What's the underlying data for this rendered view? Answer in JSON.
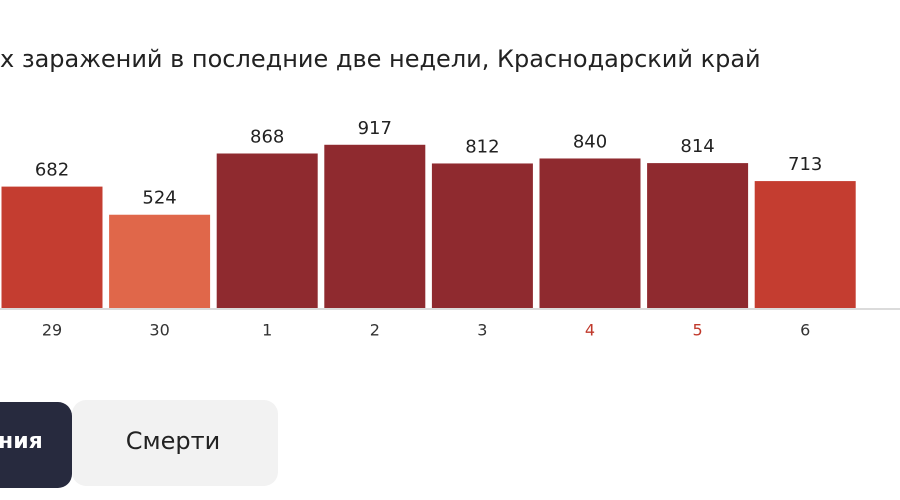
{
  "chart_data": {
    "type": "bar",
    "title": "х заражений в последние две недели, Краснодарский край",
    "categories": [
      "29",
      "30",
      "1",
      "2",
      "3",
      "4",
      "5",
      "6"
    ],
    "values": [
      682,
      524,
      868,
      917,
      812,
      840,
      814,
      713
    ],
    "colors": [
      "#c43d30",
      "#e0674a",
      "#8f2a2f",
      "#8f2a2f",
      "#8f2a2f",
      "#8f2a2f",
      "#8f2a2f",
      "#c43d30"
    ],
    "category_colors": [
      "#333333",
      "#333333",
      "#333333",
      "#333333",
      "#333333",
      "#c0392b",
      "#c0392b",
      "#333333"
    ]
  },
  "tabs": [
    "ния",
    "Смерти"
  ]
}
